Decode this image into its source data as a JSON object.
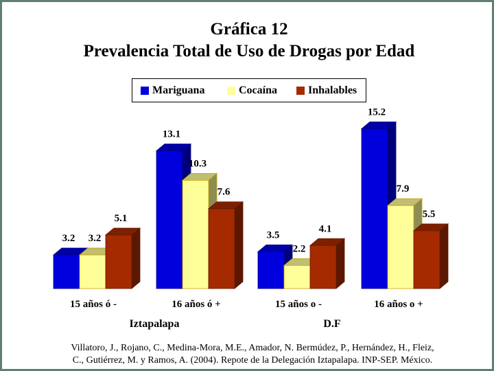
{
  "title": "Gráfica 12",
  "subtitle": "Prevalencia Total de Uso de Drogas por Edad",
  "source": [
    "Villatoro, J., Rojano, C., Medina-Mora, M.E., Amador, N. Bermúdez, P., Hernández, H., Fleiz,",
    "C., Gutiérrez, M. y Ramos, A. (2004). Repote de la Delegación Iztapalapa. INP-SEP. México."
  ],
  "colors": {
    "Mariguana": "#0000dd",
    "Cocaína": "#ffff99",
    "Inhalables": "#a52a00"
  },
  "chart_data": {
    "type": "bar",
    "title": "Gráfica 12",
    "subtitle": "Prevalencia Total de Uso de Drogas por Edad",
    "categories": [
      "15 años ó -",
      "16 años ó +",
      "15 años o -",
      "16 años o +"
    ],
    "groups": [
      {
        "label": "Iztapalapa",
        "categories": [
          "15 años ó -",
          "16 años ó +"
        ]
      },
      {
        "label": "D.F",
        "categories": [
          "15 años o -",
          "16 años o +"
        ]
      }
    ],
    "series": [
      {
        "name": "Mariguana",
        "values": [
          3.2,
          13.1,
          3.5,
          15.2
        ]
      },
      {
        "name": "Cocaína",
        "values": [
          3.2,
          10.3,
          2.2,
          7.9
        ]
      },
      {
        "name": "Inhalables",
        "values": [
          5.1,
          7.6,
          4.1,
          5.5
        ]
      }
    ],
    "data_labels": [
      [
        "3.2",
        "13.1",
        "3.5",
        "15.2"
      ],
      [
        "3.2",
        "10.3",
        "2.2",
        "7.9"
      ],
      [
        "5.1",
        "7.6",
        "4.1",
        "5.5"
      ]
    ],
    "legend": "top",
    "grid": false,
    "ylim": [
      0,
      16
    ],
    "style": "3d"
  }
}
